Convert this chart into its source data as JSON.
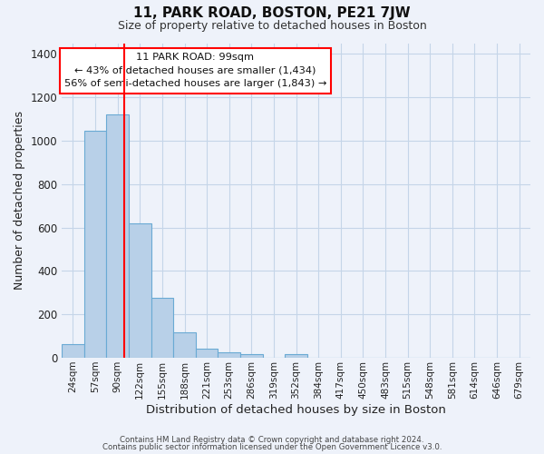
{
  "title": "11, PARK ROAD, BOSTON, PE21 7JW",
  "subtitle": "Size of property relative to detached houses in Boston",
  "xlabel": "Distribution of detached houses by size in Boston",
  "ylabel": "Number of detached properties",
  "bin_labels": [
    "24sqm",
    "57sqm",
    "90sqm",
    "122sqm",
    "155sqm",
    "188sqm",
    "221sqm",
    "253sqm",
    "286sqm",
    "319sqm",
    "352sqm",
    "384sqm",
    "417sqm",
    "450sqm",
    "483sqm",
    "515sqm",
    "548sqm",
    "581sqm",
    "614sqm",
    "646sqm",
    "679sqm"
  ],
  "bin_values": [
    65,
    1047,
    1120,
    620,
    275,
    118,
    42,
    25,
    18,
    0,
    18,
    0,
    0,
    0,
    0,
    0,
    0,
    0,
    0,
    0,
    0
  ],
  "bar_color": "#b8d0e8",
  "bar_edge_color": "#6aaad4",
  "vline_color": "red",
  "vline_pos": 2.28,
  "ylim": [
    0,
    1450
  ],
  "annotation_title": "11 PARK ROAD: 99sqm",
  "annotation_line1": "← 43% of detached houses are smaller (1,434)",
  "annotation_line2": "56% of semi-detached houses are larger (1,843) →",
  "annotation_box_color": "white",
  "annotation_box_edge": "red",
  "footer1": "Contains HM Land Registry data © Crown copyright and database right 2024.",
  "footer2": "Contains public sector information licensed under the Open Government Licence v3.0.",
  "background_color": "#eef2fa",
  "grid_color": "#c5d5e8"
}
